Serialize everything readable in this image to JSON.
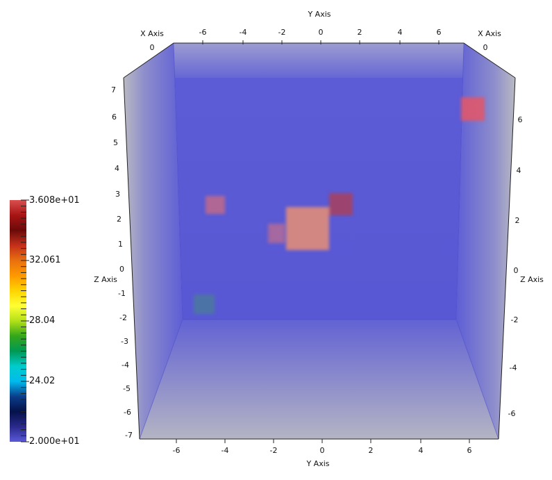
{
  "axes": {
    "x_title": "X Axis",
    "y_title": "Y Axis",
    "z_title": "Z Axis",
    "top_y_ticks": [
      "-6",
      "-4",
      "-2",
      "0",
      "2",
      "4",
      "6"
    ],
    "bottom_y_ticks": [
      "-6",
      "-4",
      "-2",
      "0",
      "2",
      "4",
      "6"
    ],
    "left_z_ticks": [
      "7",
      "6",
      "5",
      "4",
      "3",
      "2",
      "1",
      "0",
      "-1",
      "-2",
      "-3",
      "-4",
      "-5",
      "-6",
      "-7"
    ],
    "right_z_ticks": [
      "6",
      "4",
      "2",
      "0",
      "-2",
      "-4",
      "-6"
    ],
    "x_tick_left": "0",
    "x_tick_right": "0"
  },
  "colorbar": {
    "max_label": "3.608e+01",
    "label_1": "32.061",
    "label_2": "28.04",
    "label_3": "24.02",
    "min_label": "2.000e+01",
    "colors": [
      "#d9504e",
      "#a81414",
      "#6b0a0a",
      "#c4301a",
      "#e8700f",
      "#ff9900",
      "#ffd400",
      "#ffff33",
      "#b3e019",
      "#33a61a",
      "#009955",
      "#00cccc",
      "#00bbee",
      "#0a3d8a",
      "#05124a",
      "#2a2a8c",
      "#5a5ad9"
    ]
  },
  "volume": {
    "background_color": "#5c5cd6",
    "blobs": [
      {
        "name": "blob-top-right",
        "color": "#e0566b"
      },
      {
        "name": "blob-left",
        "color": "#c06a8a"
      },
      {
        "name": "blob-center-large",
        "color": "#e08c7a"
      },
      {
        "name": "blob-small-left",
        "color": "#b86a94"
      },
      {
        "name": "blob-dark-red",
        "color": "#a8405e"
      },
      {
        "name": "blob-teal",
        "color": "#4a7a9a"
      }
    ]
  }
}
